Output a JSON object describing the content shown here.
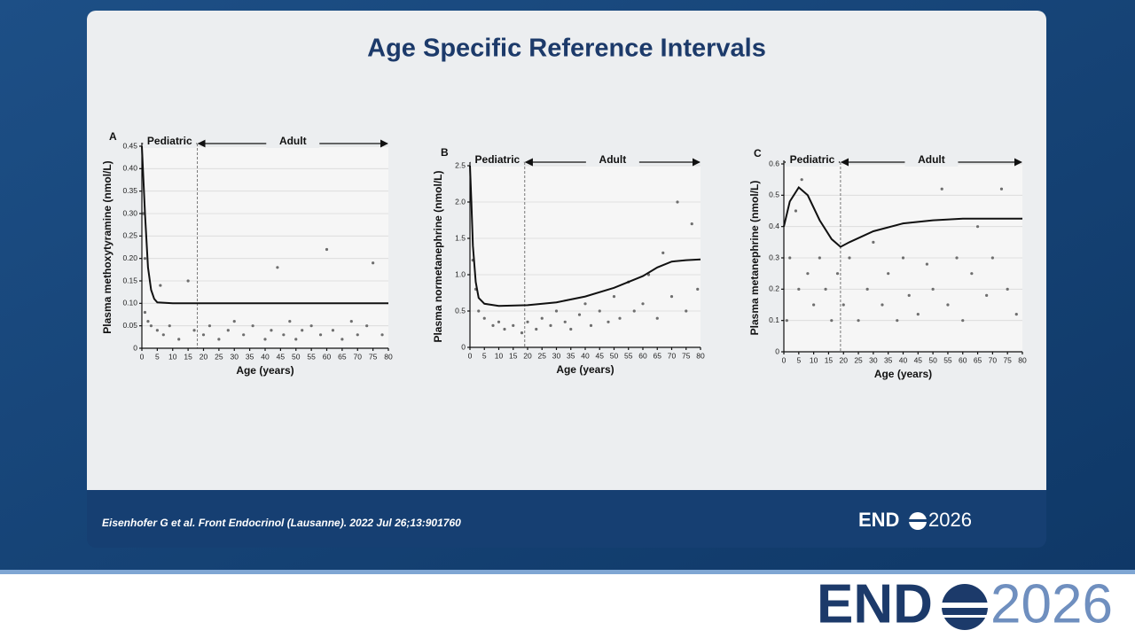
{
  "title": "Age Specific Reference Intervals",
  "citation": "Eisenhofer G et al. Front Endocrinol (Lausanne). 2022 Jul 26;13:901760",
  "footer_logo": {
    "brand": "END",
    "year": "2026"
  },
  "bottom_logo": {
    "brand": "END",
    "year": "2026"
  },
  "chart_data": [
    {
      "type": "scatter",
      "panel": "A",
      "ylabel": "Plasma methoxytyramine (nmol/L)",
      "xlabel": "Age (years)",
      "xlim": [
        0,
        80
      ],
      "xticks": [
        0,
        5,
        10,
        15,
        20,
        25,
        30,
        35,
        40,
        45,
        50,
        55,
        60,
        65,
        70,
        75,
        80
      ],
      "ylim": [
        0,
        0.45
      ],
      "yticks": [
        0,
        0.05,
        {
          "value": 0.1,
          "label": "0.10"
        },
        0.15,
        {
          "value": 0.2,
          "label": "0.20"
        },
        0.25,
        {
          "value": 0.3,
          "label": "0.30"
        },
        0.35,
        {
          "value": 0.4,
          "label": "0.40"
        },
        0.45
      ],
      "grid": true,
      "regions": [
        {
          "label": "Pediatric",
          "range": [
            0,
            18
          ]
        },
        {
          "label": "Adult",
          "range": [
            18,
            80
          ]
        }
      ],
      "series": [
        {
          "type": "scatter",
          "color": "#6e6e6e",
          "x": [
            0.5,
            1,
            1,
            2,
            3,
            5,
            6,
            7,
            9,
            12,
            15,
            17,
            20,
            22,
            25,
            28,
            30,
            33,
            36,
            40,
            42,
            44,
            46,
            48,
            50,
            52,
            55,
            58,
            60,
            62,
            65,
            68,
            70,
            73,
            75,
            78
          ],
          "values": [
            0.3,
            0.2,
            0.08,
            0.06,
            0.05,
            0.04,
            0.14,
            0.03,
            0.05,
            0.02,
            0.15,
            0.04,
            0.03,
            0.05,
            0.02,
            0.04,
            0.06,
            0.03,
            0.05,
            0.02,
            0.04,
            0.18,
            0.03,
            0.06,
            0.02,
            0.04,
            0.05,
            0.03,
            0.22,
            0.04,
            0.02,
            0.06,
            0.03,
            0.05,
            0.19,
            0.03
          ]
        },
        {
          "type": "line",
          "color": "#111111",
          "x": [
            0,
            1,
            2,
            3,
            4,
            5,
            10,
            80
          ],
          "values": [
            0.45,
            0.3,
            0.18,
            0.13,
            0.11,
            0.102,
            0.1,
            0.1
          ]
        }
      ]
    },
    {
      "type": "scatter",
      "panel": "B",
      "ylabel": "Plasma normetanephrine (nmol/L)",
      "xlabel": "Age (years)",
      "xlim": [
        0,
        80
      ],
      "xticks": [
        0,
        5,
        10,
        15,
        20,
        25,
        30,
        35,
        40,
        45,
        50,
        55,
        60,
        65,
        70,
        75,
        80
      ],
      "ylim": [
        0,
        2.5
      ],
      "yticks": [
        0,
        0.5,
        {
          "value": 1,
          "label": "1.0"
        },
        1.5,
        {
          "value": 2,
          "label": "2.0"
        },
        2.5
      ],
      "grid": true,
      "regions": [
        {
          "label": "Pediatric",
          "range": [
            0,
            19
          ]
        },
        {
          "label": "Adult",
          "range": [
            19,
            80
          ]
        }
      ],
      "series": [
        {
          "type": "scatter",
          "color": "#6e6e6e",
          "x": [
            1,
            2,
            3,
            5,
            8,
            10,
            12,
            15,
            18,
            20,
            23,
            25,
            28,
            30,
            33,
            35,
            38,
            40,
            42,
            45,
            48,
            50,
            52,
            55,
            57,
            60,
            62,
            65,
            67,
            70,
            72,
            75,
            77,
            79
          ],
          "values": [
            1.2,
            0.8,
            0.5,
            0.4,
            0.3,
            0.35,
            0.25,
            0.3,
            0.2,
            0.35,
            0.25,
            0.4,
            0.3,
            0.5,
            0.35,
            0.25,
            0.45,
            0.6,
            0.3,
            0.5,
            0.35,
            0.7,
            0.4,
            0.9,
            0.5,
            0.6,
            1.0,
            0.4,
            1.3,
            0.7,
            2.0,
            0.5,
            1.7,
            0.8
          ]
        },
        {
          "type": "line",
          "color": "#111111",
          "x": [
            0,
            0.5,
            1,
            2,
            3,
            5,
            10,
            20,
            30,
            40,
            50,
            60,
            65,
            70,
            75,
            80
          ],
          "values": [
            2.5,
            2,
            1.4,
            0.9,
            0.68,
            0.6,
            0.57,
            0.58,
            0.62,
            0.7,
            0.82,
            0.98,
            1.1,
            1.18,
            1.2,
            1.21
          ]
        }
      ]
    },
    {
      "type": "scatter",
      "panel": "C",
      "ylabel": "Plasma metanephrine (nmol/L)",
      "xlabel": "Age (years)",
      "xlim": [
        0,
        80
      ],
      "xticks": [
        0,
        5,
        10,
        15,
        20,
        25,
        30,
        35,
        40,
        45,
        50,
        55,
        60,
        65,
        70,
        75,
        80
      ],
      "ylim": [
        0,
        0.6
      ],
      "yticks": [
        0,
        0.1,
        0.2,
        0.3,
        0.4,
        0.5,
        0.6
      ],
      "grid": true,
      "regions": [
        {
          "label": "Pediatric",
          "range": [
            0,
            19
          ]
        },
        {
          "label": "Adult",
          "range": [
            19,
            80
          ]
        }
      ],
      "series": [
        {
          "type": "scatter",
          "color": "#6e6e6e",
          "x": [
            1,
            2,
            4,
            5,
            6,
            8,
            10,
            12,
            14,
            16,
            18,
            20,
            22,
            25,
            28,
            30,
            33,
            35,
            38,
            40,
            42,
            45,
            48,
            50,
            53,
            55,
            58,
            60,
            63,
            65,
            68,
            70,
            73,
            75,
            78
          ],
          "values": [
            0.1,
            0.3,
            0.45,
            0.2,
            0.55,
            0.25,
            0.15,
            0.3,
            0.2,
            0.1,
            0.25,
            0.15,
            0.3,
            0.1,
            0.2,
            0.35,
            0.15,
            0.25,
            0.1,
            0.3,
            0.18,
            0.12,
            0.28,
            0.2,
            0.52,
            0.15,
            0.3,
            0.1,
            0.25,
            0.4,
            0.18,
            0.3,
            0.52,
            0.2,
            0.12
          ]
        },
        {
          "type": "line",
          "color": "#111111",
          "x": [
            0,
            2,
            5,
            8,
            12,
            16,
            19,
            22,
            30,
            40,
            50,
            60,
            80
          ],
          "values": [
            0.4,
            0.48,
            0.525,
            0.5,
            0.42,
            0.36,
            0.335,
            0.35,
            0.385,
            0.41,
            0.42,
            0.425,
            0.425
          ]
        }
      ]
    }
  ]
}
